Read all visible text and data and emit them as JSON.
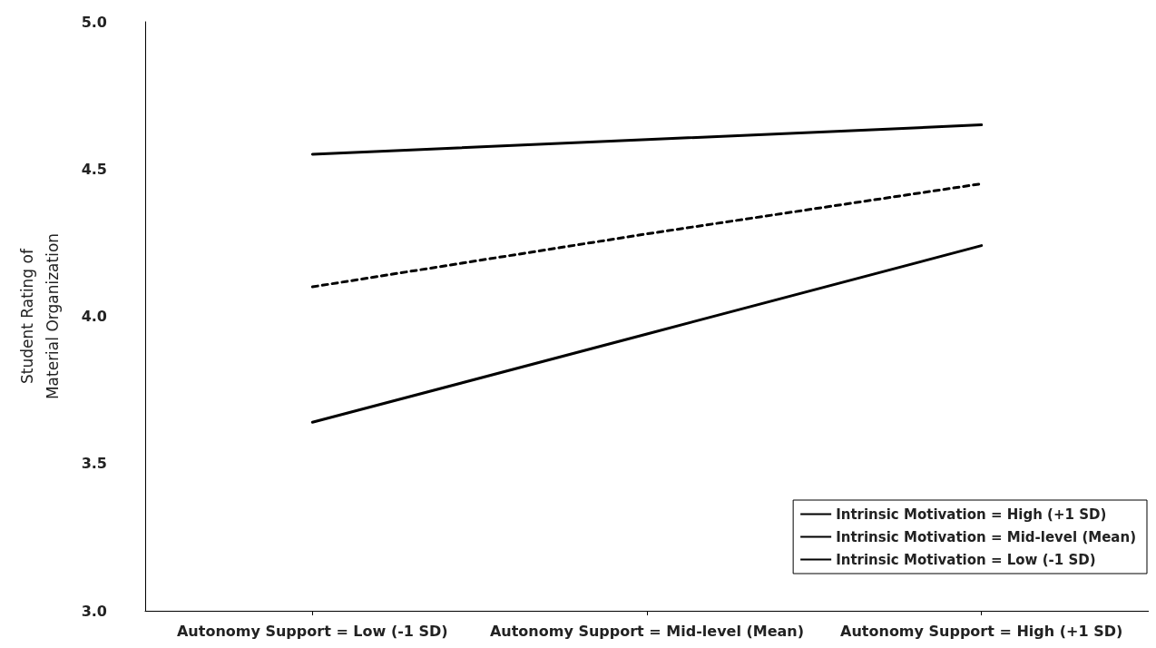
{
  "chart_data": {
    "type": "line",
    "ylabel": "Student Rating of\nMaterial Organization",
    "categories": [
      "Autonomy Support = Low (-1 SD)",
      "Autonomy Support = Mid-level (Mean)",
      "Autonomy Support = High (+1 SD)"
    ],
    "series": [
      {
        "name": "Intrinsic Motivation = High (+1 SD)",
        "color": "#000000",
        "line_style": "solid",
        "values": [
          4.55,
          4.6,
          4.65
        ]
      },
      {
        "name": "Intrinsic Motivation = Mid-level (Mean)",
        "color": "#000000",
        "line_style": "dashed",
        "values": [
          4.1,
          4.28,
          4.45
        ]
      },
      {
        "name": "Intrinsic Motivation = Low (-1 SD)",
        "color": "#000000",
        "line_style": "solid",
        "values": [
          3.64,
          3.94,
          4.24
        ]
      }
    ],
    "ylim": [
      3.0,
      5.0
    ],
    "yticks": [
      {
        "value": 3,
        "label": "3.0"
      },
      {
        "value": 3.5,
        "label": "3.5"
      },
      {
        "value": 4,
        "label": "4.0"
      },
      {
        "value": 4.5,
        "label": "4.5"
      },
      {
        "value": 5,
        "label": "5.0"
      }
    ],
    "grid": false,
    "legend": "bottom right",
    "marker": "none"
  }
}
